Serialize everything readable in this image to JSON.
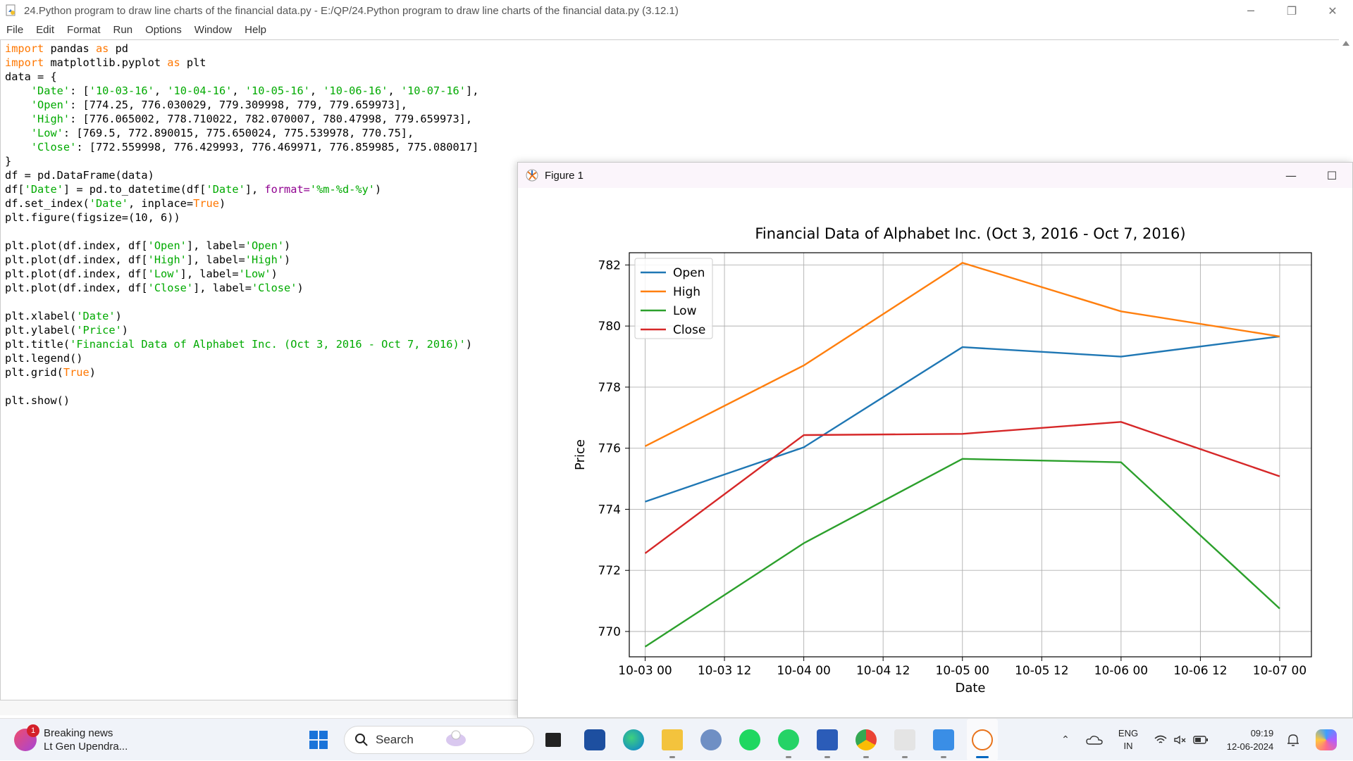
{
  "idle": {
    "title": "24.Python program to draw line charts of the financial data.py - E:/QP/24.Python program to draw line charts of the financial data.py (3.12.1)",
    "menu": [
      "File",
      "Edit",
      "Format",
      "Run",
      "Options",
      "Window",
      "Help"
    ],
    "code_lines": [
      [
        [
          "kw",
          "import"
        ],
        [
          "t",
          " pandas "
        ],
        [
          "kw",
          "as"
        ],
        [
          "t",
          " pd"
        ]
      ],
      [
        [
          "kw",
          "import"
        ],
        [
          "t",
          " matplotlib.pyplot "
        ],
        [
          "kw",
          "as"
        ],
        [
          "t",
          " plt"
        ]
      ],
      [
        [
          "t",
          "data = {"
        ]
      ],
      [
        [
          "t",
          "    "
        ],
        [
          "str",
          "'Date'"
        ],
        [
          "t",
          ": ["
        ],
        [
          "str",
          "'10-03-16'"
        ],
        [
          "t",
          ", "
        ],
        [
          "str",
          "'10-04-16'"
        ],
        [
          "t",
          ", "
        ],
        [
          "str",
          "'10-05-16'"
        ],
        [
          "t",
          ", "
        ],
        [
          "str",
          "'10-06-16'"
        ],
        [
          "t",
          ", "
        ],
        [
          "str",
          "'10-07-16'"
        ],
        [
          "t",
          "],"
        ]
      ],
      [
        [
          "t",
          "    "
        ],
        [
          "str",
          "'Open'"
        ],
        [
          "t",
          ": [774.25, 776.030029, 779.309998, 779, 779.659973],"
        ]
      ],
      [
        [
          "t",
          "    "
        ],
        [
          "str",
          "'High'"
        ],
        [
          "t",
          ": [776.065002, 778.710022, 782.070007, 780.47998, 779.659973],"
        ]
      ],
      [
        [
          "t",
          "    "
        ],
        [
          "str",
          "'Low'"
        ],
        [
          "t",
          ": [769.5, 772.890015, 775.650024, 775.539978, 770.75],"
        ]
      ],
      [
        [
          "t",
          "    "
        ],
        [
          "str",
          "'Close'"
        ],
        [
          "t",
          ": [772.559998, 776.429993, 776.469971, 776.859985, 775.080017]"
        ]
      ],
      [
        [
          "t",
          "}"
        ]
      ],
      [
        [
          "t",
          "df = pd.DataFrame(data)"
        ]
      ],
      [
        [
          "t",
          "df["
        ],
        [
          "str",
          "'Date'"
        ],
        [
          "t",
          "] = pd.to_datetime(df["
        ],
        [
          "str",
          "'Date'"
        ],
        [
          "t",
          "], "
        ],
        [
          "bi",
          "format="
        ],
        [
          "str",
          "'%m-%d-%y'"
        ],
        [
          "t",
          ")"
        ]
      ],
      [
        [
          "t",
          "df.set_index("
        ],
        [
          "str",
          "'Date'"
        ],
        [
          "t",
          ", inplace="
        ],
        [
          "kw",
          "True"
        ],
        [
          "t",
          ")"
        ]
      ],
      [
        [
          "t",
          "plt.figure(figsize=(10, 6))"
        ]
      ],
      [
        [
          "t",
          ""
        ]
      ],
      [
        [
          "t",
          "plt.plot(df.index, df["
        ],
        [
          "str",
          "'Open'"
        ],
        [
          "t",
          "], label="
        ],
        [
          "str",
          "'Open'"
        ],
        [
          "t",
          ")"
        ]
      ],
      [
        [
          "t",
          "plt.plot(df.index, df["
        ],
        [
          "str",
          "'High'"
        ],
        [
          "t",
          "], label="
        ],
        [
          "str",
          "'High'"
        ],
        [
          "t",
          ")"
        ]
      ],
      [
        [
          "t",
          "plt.plot(df.index, df["
        ],
        [
          "str",
          "'Low'"
        ],
        [
          "t",
          "], label="
        ],
        [
          "str",
          "'Low'"
        ],
        [
          "t",
          ")"
        ]
      ],
      [
        [
          "t",
          "plt.plot(df.index, df["
        ],
        [
          "str",
          "'Close'"
        ],
        [
          "t",
          "], label="
        ],
        [
          "str",
          "'Close'"
        ],
        [
          "t",
          ")"
        ]
      ],
      [
        [
          "t",
          ""
        ]
      ],
      [
        [
          "t",
          "plt.xlabel("
        ],
        [
          "str",
          "'Date'"
        ],
        [
          "t",
          ")"
        ]
      ],
      [
        [
          "t",
          "plt.ylabel("
        ],
        [
          "str",
          "'Price'"
        ],
        [
          "t",
          ")"
        ]
      ],
      [
        [
          "t",
          "plt.title("
        ],
        [
          "str",
          "'Financial Data of Alphabet Inc. (Oct 3, 2016 - Oct 7, 2016)'"
        ],
        [
          "t",
          ")"
        ]
      ],
      [
        [
          "t",
          "plt.legend()"
        ]
      ],
      [
        [
          "t",
          "plt.grid("
        ],
        [
          "kw",
          "True"
        ],
        [
          "t",
          ")"
        ]
      ],
      [
        [
          "t",
          ""
        ]
      ],
      [
        [
          "t",
          "plt.show()"
        ]
      ]
    ]
  },
  "figure": {
    "window_title": "Figure 1",
    "minimize_glyph": "—",
    "maximize_glyph": "☐"
  },
  "chart_data": {
    "type": "line",
    "title": "Financial Data of Alphabet Inc. (Oct 3, 2016 - Oct 7, 2016)",
    "xlabel": "Date",
    "ylabel": "Price",
    "x_ticks": [
      "10-03 00",
      "10-03 12",
      "10-04 00",
      "10-04 12",
      "10-05 00",
      "10-05 12",
      "10-06 00",
      "10-06 12",
      "10-07 00"
    ],
    "x_days": [
      0,
      1,
      2,
      3,
      4
    ],
    "y_ticks": [
      770,
      772,
      774,
      776,
      778,
      780,
      782
    ],
    "xlim": [
      -0.1,
      4.2
    ],
    "ylim": [
      769.17,
      782.4
    ],
    "grid": true,
    "legend_position": "top-left",
    "series": [
      {
        "name": "Open",
        "color": "#1f77b4",
        "values": [
          774.25,
          776.030029,
          779.309998,
          779,
          779.659973
        ]
      },
      {
        "name": "High",
        "color": "#ff7f0e",
        "values": [
          776.065002,
          778.710022,
          782.070007,
          780.47998,
          779.659973
        ]
      },
      {
        "name": "Low",
        "color": "#2ca02c",
        "values": [
          769.5,
          772.890015,
          775.650024,
          775.539978,
          770.75
        ]
      },
      {
        "name": "Close",
        "color": "#d62728",
        "values": [
          772.559998,
          776.429993,
          776.469971,
          776.859985,
          775.080017
        ]
      }
    ]
  },
  "taskbar": {
    "news_badge": "1",
    "news_title": "Breaking news",
    "news_subtitle": "Lt Gen Upendra...",
    "search_placeholder": "Search",
    "lang_top": "ENG",
    "lang_bottom": "IN",
    "time": "09:19",
    "date": "12-06-2024"
  }
}
